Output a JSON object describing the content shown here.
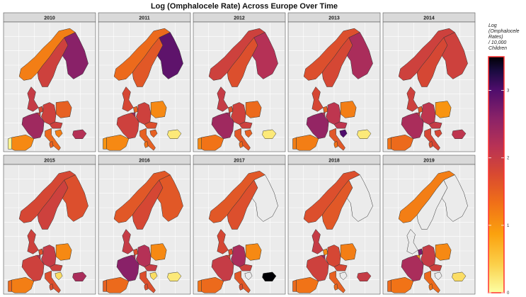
{
  "chart_data": {
    "type": "heatmap",
    "subtype": "choropleth-small-multiples",
    "title": "Log (Omphalocele Rate) Across Europe Over Time",
    "panels": [
      "2010",
      "2011",
      "2012",
      "2013",
      "2014",
      "2015",
      "2016",
      "2017",
      "2018",
      "2019"
    ],
    "regions": [
      "Norway",
      "Sweden",
      "Finland",
      "UK",
      "Netherlands",
      "Belgium",
      "Germany",
      "Poland",
      "France",
      "Austria",
      "Switzerland",
      "Italy",
      "Croatia",
      "Malta",
      "Portugal",
      "Spain",
      "Bulgaria",
      "Ukraine"
    ],
    "values": {
      "2010": {
        "Norway": 1.2,
        "Sweden": 1.9,
        "Finland": 2.6,
        "UK": 2.0,
        "Netherlands": 1.8,
        "Belgium": 1.9,
        "Germany": 1.9,
        "Poland": 1.5,
        "France": 2.4,
        "Austria": 1.9,
        "Italy": 1.4,
        "Croatia": 1.2,
        "Malta": 1.5,
        "Portugal": 0.1,
        "Spain": 1.1,
        "Bulgaria": 2.2,
        "Ukraine": null
      },
      "2011": {
        "Norway": 1.4,
        "Sweden": 1.6,
        "Finland": 2.9,
        "UK": 1.8,
        "Netherlands": 1.5,
        "Belgium": 2.4,
        "Germany": 1.9,
        "Poland": 1.1,
        "France": 1.9,
        "Austria": 1.7,
        "Italy": 1.5,
        "Croatia": 1.5,
        "Malta": 1.3,
        "Portugal": 1.0,
        "Spain": 1.1,
        "Bulgaria": 0.2,
        "Ukraine": null
      },
      "2012": {
        "Norway": 1.9,
        "Sweden": 1.7,
        "Finland": 2.2,
        "UK": 2.0,
        "Netherlands": 1.7,
        "Belgium": 2.3,
        "Germany": 1.9,
        "Poland": 1.4,
        "France": 2.4,
        "Austria": 1.9,
        "Italy": 1.6,
        "Croatia": 1.5,
        "Malta": 1.4,
        "Portugal": 1.1,
        "Spain": 1.3,
        "Bulgaria": 0.2,
        "Ukraine": null
      },
      "2013": {
        "Norway": 1.7,
        "Sweden": 1.8,
        "Finland": 2.3,
        "UK": 1.8,
        "Netherlands": 1.5,
        "Belgium": 2.2,
        "Germany": 2.1,
        "Poland": 1.2,
        "France": 2.5,
        "Austria": 2.1,
        "Italy": 1.6,
        "Croatia": 3.0,
        "Malta": 1.3,
        "Portugal": 1.2,
        "Spain": 1.2,
        "Bulgaria": 0.2,
        "Ukraine": null
      },
      "2014": {
        "Norway": 1.9,
        "Sweden": 1.8,
        "Finland": 1.9,
        "UK": 1.9,
        "Netherlands": 1.6,
        "Belgium": 2.0,
        "Germany": 2.1,
        "Poland": 1.0,
        "France": 2.3,
        "Austria": 2.0,
        "Italy": 1.8,
        "Croatia": 1.8,
        "Malta": 1.7,
        "Portugal": 1.3,
        "Spain": 1.4,
        "Bulgaria": 2.1,
        "Ukraine": null
      },
      "2015": {
        "Norway": 1.8,
        "Sweden": 1.9,
        "Finland": 1.7,
        "UK": 1.9,
        "Netherlands": 1.7,
        "Belgium": 2.2,
        "Germany": 2.0,
        "Poland": 1.1,
        "France": 1.9,
        "Austria": 1.9,
        "Italy": 1.7,
        "Croatia": 0.3,
        "Malta": 1.7,
        "Portugal": 1.4,
        "Spain": 1.2,
        "Bulgaria": 2.3,
        "Ukraine": null
      },
      "2016": {
        "Norway": 1.6,
        "Sweden": 1.8,
        "Finland": 1.6,
        "UK": 2.0,
        "Netherlands": 1.7,
        "Belgium": 2.3,
        "Germany": 2.2,
        "Poland": 1.1,
        "France": 2.6,
        "Austria": 2.0,
        "Italy": 1.7,
        "Croatia": 0.3,
        "Malta": 1.7,
        "Portugal": 1.5,
        "Spain": 1.4,
        "Bulgaria": 0.2,
        "Ukraine": null
      },
      "2017": {
        "Norway": 1.6,
        "Sweden": 1.7,
        "Finland": null,
        "UK": 1.8,
        "Netherlands": 1.7,
        "Belgium": 1.8,
        "Germany": 2.3,
        "Poland": 1.1,
        "France": 2.0,
        "Austria": 1.9,
        "Italy": 1.6,
        "Croatia": null,
        "Malta": 1.7,
        "Portugal": 1.3,
        "Spain": 1.4,
        "Bulgaria": 3.5,
        "Ukraine": null
      },
      "2018": {
        "Norway": 1.7,
        "Sweden": 1.6,
        "Finland": null,
        "UK": 2.0,
        "Netherlands": 1.1,
        "Belgium": 2.4,
        "Germany": 1.8,
        "Poland": 1.2,
        "France": 1.9,
        "Austria": 1.8,
        "Italy": 1.5,
        "Croatia": null,
        "Malta": 1.4,
        "Portugal": 1.4,
        "Spain": 1.3,
        "Bulgaria": 2.0,
        "Ukraine": null
      },
      "2019": {
        "Norway": 1.2,
        "Sweden": null,
        "Finland": null,
        "UK": null,
        "Netherlands": 2.7,
        "Belgium": 1.0,
        "Germany": 2.0,
        "Poland": 1.1,
        "France": 2.3,
        "Austria": 1.9,
        "Italy": 1.4,
        "Croatia": null,
        "Malta": 1.3,
        "Portugal": 1.4,
        "Spain": 1.3,
        "Bulgaria": 0.3,
        "Ukraine": null
      }
    },
    "legend": {
      "title_lines": [
        "Log",
        "(Omphalocele",
        "Rates)",
        "/ 10,000",
        "Children"
      ],
      "ticks": [
        0,
        1,
        2,
        3
      ],
      "range": [
        0,
        3.5
      ],
      "colormap": "inferno-reversed",
      "placement": "right"
    },
    "grid": true,
    "colors": {
      "panel_bg": "#ebebeb",
      "strip_bg": "#d9d9d9",
      "legend_border": "#ff3030",
      "na": "#ebebeb"
    }
  }
}
